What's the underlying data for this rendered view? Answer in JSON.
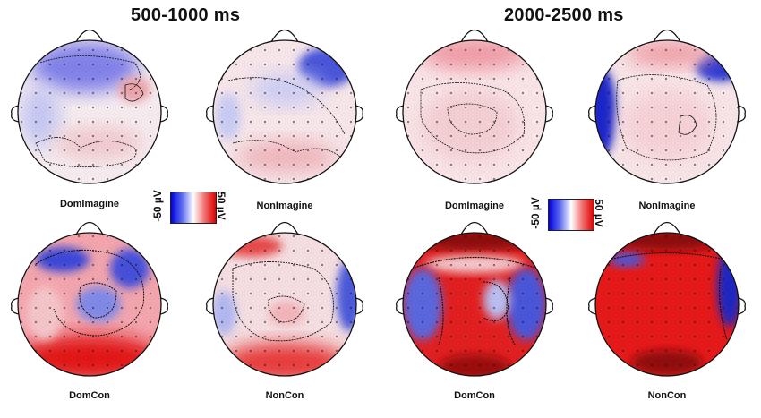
{
  "panels": [
    {
      "title": "500-1000 ms",
      "colorbar": {
        "min_label": "-50 µV",
        "max_label": "50 µV"
      }
    },
    {
      "title": "2000-2500 ms",
      "colorbar": {
        "min_label": "-50 µV",
        "max_label": "50 µV"
      }
    }
  ],
  "maps": [
    {
      "label": "DomImagine"
    },
    {
      "label": "NonImagine"
    },
    {
      "label": "DomImagine"
    },
    {
      "label": "NonImagine"
    },
    {
      "label": "DomCon"
    },
    {
      "label": "NonCon"
    },
    {
      "label": "DomCon"
    },
    {
      "label": "NonCon"
    }
  ],
  "colors": {
    "negative": "#0000e0",
    "neutral": "#ffffff",
    "positive": "#e00000"
  }
}
